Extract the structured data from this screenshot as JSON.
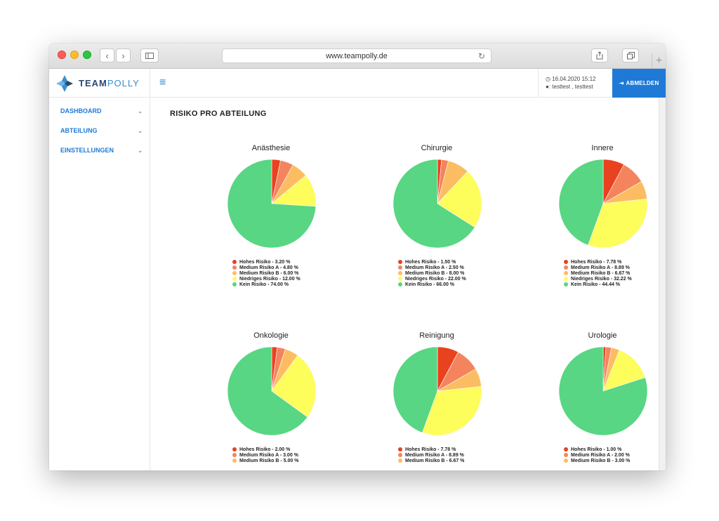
{
  "browser": {
    "url": "www.teampolly.de"
  },
  "header": {
    "logo_bold": "TEAM",
    "logo_light": "POLLY",
    "datetime": "16.04.2020 15:12",
    "user": ": testtest , testtest",
    "logout_label": "ABMELDEN"
  },
  "sidebar": {
    "items": [
      {
        "label": "DASHBOARD"
      },
      {
        "label": "ABTEILUNG"
      },
      {
        "label": "EINSTELLUNGEN"
      }
    ]
  },
  "main": {
    "title": "RISIKO PRO ABTEILUNG"
  },
  "colors": {
    "accent": "#1e7ad6",
    "hohes": "#e8421f",
    "mediumA": "#f4845e",
    "mediumB": "#fcbd62",
    "niedriges": "#fdfd5c",
    "kein": "#58d683"
  },
  "chart_data": [
    {
      "type": "pie",
      "title": "Anästhesie",
      "slices": [
        {
          "label": "Hohes Risiko - 3.20 %",
          "value": 3.2
        },
        {
          "label": "Medium Risiko A - 4.80 %",
          "value": 4.8
        },
        {
          "label": "Medium Risiko B - 6.00 %",
          "value": 6.0
        },
        {
          "label": "Niedriges Risiko - 12.00 %",
          "value": 12.0
        },
        {
          "label": "Kein Risiko - 74.00 %",
          "value": 74.0
        }
      ]
    },
    {
      "type": "pie",
      "title": "Chirurgie",
      "slices": [
        {
          "label": "Hohes Risiko - 1.50 %",
          "value": 1.5
        },
        {
          "label": "Medium Risiko A - 2.50 %",
          "value": 2.5
        },
        {
          "label": "Medium Risiko B - 8.00 %",
          "value": 8.0
        },
        {
          "label": "Niedriges Risiko - 22.00 %",
          "value": 22.0
        },
        {
          "label": "Kein Risiko - 66.00 %",
          "value": 66.0
        }
      ]
    },
    {
      "type": "pie",
      "title": "Innere",
      "slices": [
        {
          "label": "Hohes Risiko - 7.78 %",
          "value": 7.78
        },
        {
          "label": "Medium Risiko A - 8.89 %",
          "value": 8.89
        },
        {
          "label": "Medium Risiko B - 6.67 %",
          "value": 6.67
        },
        {
          "label": "Niedriges Risiko - 32.22 %",
          "value": 32.22
        },
        {
          "label": "Kein Risiko - 44.44 %",
          "value": 44.44
        }
      ]
    },
    {
      "type": "pie",
      "title": "Onkologie",
      "slices": [
        {
          "label": "Hohes Risiko - 2.00 %",
          "value": 2.0
        },
        {
          "label": "Medium Risiko A - 3.00 %",
          "value": 3.0
        },
        {
          "label": "Medium Risiko B - 5.00 %",
          "value": 5.0
        },
        {
          "value": 25.0
        },
        {
          "value": 65.0
        }
      ]
    },
    {
      "type": "pie",
      "title": "Reinigung",
      "slices": [
        {
          "label": "Hohes Risiko - 7.78 %",
          "value": 7.78
        },
        {
          "label": "Medium Risiko A - 8.89 %",
          "value": 8.89
        },
        {
          "label": "Medium Risiko B - 6.67 %",
          "value": 6.67
        },
        {
          "value": 32.22
        },
        {
          "value": 44.44
        }
      ]
    },
    {
      "type": "pie",
      "title": "Urologie",
      "slices": [
        {
          "label": "Hohes Risiko - 1.00 %",
          "value": 1.0
        },
        {
          "label": "Medium Risiko A - 2.00 %",
          "value": 2.0
        },
        {
          "label": "Medium Risiko B - 3.00 %",
          "value": 3.0
        },
        {
          "value": 14.0
        },
        {
          "value": 80.0
        }
      ]
    }
  ]
}
